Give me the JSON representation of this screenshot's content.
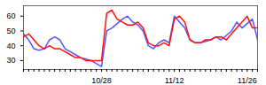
{
  "chart_data": {
    "type": "line",
    "categories": [
      null,
      null,
      null,
      null,
      null,
      null,
      null,
      null,
      null,
      null,
      null,
      null,
      null,
      null,
      null,
      "10/28",
      null,
      null,
      null,
      null,
      null,
      null,
      null,
      null,
      null,
      null,
      null,
      null,
      null,
      "11/12",
      null,
      null,
      null,
      null,
      null,
      null,
      null,
      null,
      null,
      null,
      null,
      null,
      null,
      "11/26",
      null,
      null
    ],
    "series": [
      {
        "color": "#5555ff",
        "values": [
          48,
          44,
          38,
          37,
          38,
          44,
          46,
          44,
          38,
          36,
          34,
          32,
          31,
          30,
          28,
          26,
          50,
          52,
          55,
          58,
          60,
          56,
          54,
          50,
          40,
          38,
          42,
          44,
          42,
          60,
          56,
          52,
          44,
          42,
          42,
          43,
          44,
          46,
          44,
          47,
          50,
          56,
          52,
          55,
          58,
          44
        ]
      },
      {
        "color": "#ff1111",
        "values": [
          46,
          48,
          44,
          40,
          38,
          40,
          38,
          38,
          36,
          34,
          32,
          32,
          30,
          30,
          30,
          30,
          62,
          64,
          58,
          56,
          54,
          54,
          56,
          52,
          42,
          40,
          40,
          42,
          40,
          58,
          60,
          56,
          44,
          42,
          42,
          44,
          44,
          46,
          46,
          44,
          48,
          52,
          56,
          60,
          52,
          52
        ]
      }
    ],
    "ylim": [
      24,
      67
    ],
    "yticks": [
      30,
      40,
      50,
      60
    ],
    "grid": false
  }
}
